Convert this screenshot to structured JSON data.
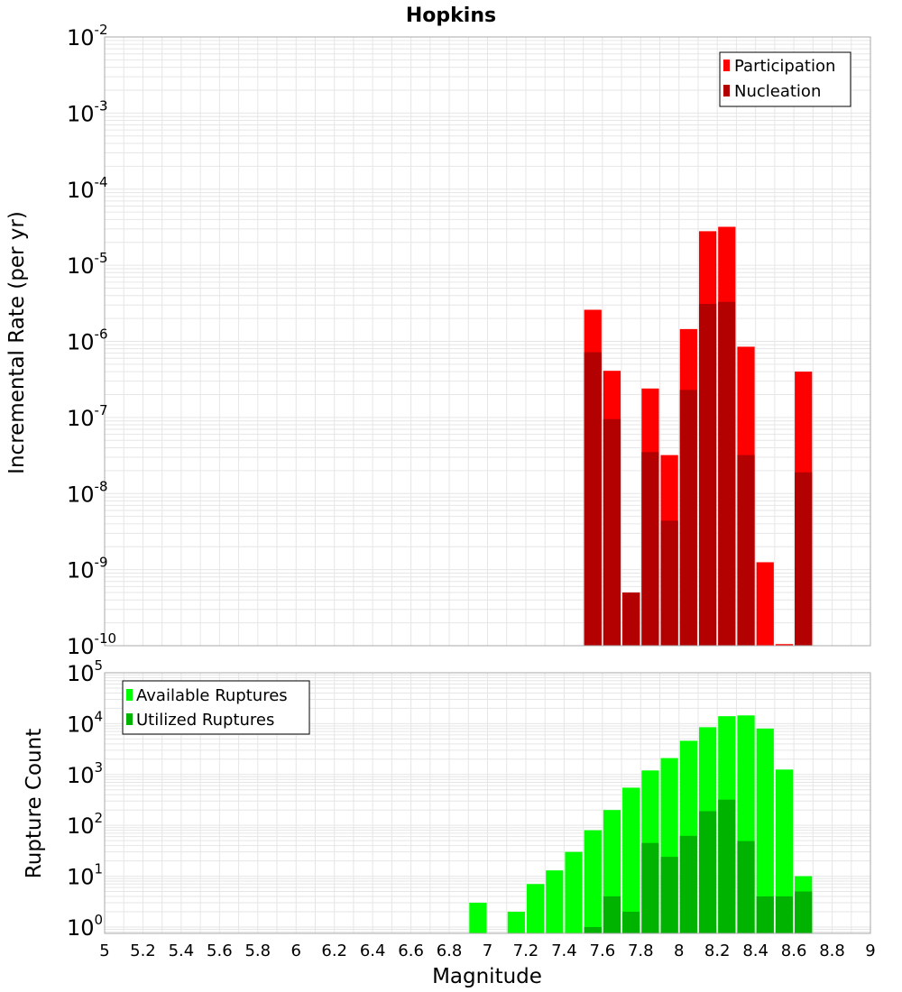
{
  "title": "Hopkins",
  "xlabel": "Magnitude",
  "x_ticks": [
    "5",
    "5.2",
    "5.4",
    "5.6",
    "5.8",
    "6",
    "6.2",
    "6.4",
    "6.6",
    "6.8",
    "7",
    "7.2",
    "7.4",
    "7.6",
    "7.8",
    "8",
    "8.2",
    "8.4",
    "8.6",
    "8.8",
    "9"
  ],
  "colors": {
    "participation": "#ff0000",
    "nucleation": "#b30000",
    "available": "#00ff00",
    "utilized": "#00b300",
    "grid": "#e6e6e6",
    "frame": "#aaaaaa"
  },
  "chart_data": [
    {
      "type": "bar",
      "title": "Hopkins",
      "xlabel": "",
      "ylabel": "Incremental Rate (per yr)",
      "yscale": "log",
      "xlim": [
        5,
        9
      ],
      "ylim_exp": [
        -10,
        -2
      ],
      "y_ticks": [
        {
          "base": "10",
          "exp": "-2"
        },
        {
          "base": "10",
          "exp": "-3"
        },
        {
          "base": "10",
          "exp": "-4"
        },
        {
          "base": "10",
          "exp": "-5"
        },
        {
          "base": "10",
          "exp": "-6"
        },
        {
          "base": "10",
          "exp": "-7"
        },
        {
          "base": "10",
          "exp": "-8"
        },
        {
          "base": "10",
          "exp": "-9"
        },
        {
          "base": "10",
          "exp": "-10"
        }
      ],
      "legend": [
        "Participation",
        "Nucleation"
      ],
      "legend_position": "top-right",
      "bar_width": 0.1,
      "series": [
        {
          "name": "Participation",
          "x": [
            7.55,
            7.65,
            7.75,
            7.85,
            7.95,
            8.05,
            8.15,
            8.25,
            8.35,
            8.45,
            8.55,
            8.65
          ],
          "values": [
            2.6e-06,
            4.1e-07,
            5e-10,
            2.4e-07,
            3.2e-08,
            1.45e-06,
            2.8e-05,
            3.2e-05,
            8.5e-07,
            1.25e-09,
            1.05e-10,
            4e-07
          ]
        },
        {
          "name": "Nucleation",
          "x": [
            7.55,
            7.65,
            7.75,
            7.85,
            7.95,
            8.05,
            8.15,
            8.25,
            8.35,
            8.65
          ],
          "values": [
            7.2e-07,
            9.5e-08,
            5e-10,
            3.5e-08,
            4.4e-09,
            2.3e-07,
            3.1e-06,
            3.3e-06,
            3.2e-08,
            1.9e-08
          ]
        }
      ]
    },
    {
      "type": "bar",
      "xlabel": "Magnitude",
      "ylabel": "Rupture Count",
      "yscale": "log",
      "xlim": [
        5,
        9
      ],
      "ylim": [
        0.75,
        100000
      ],
      "y_ticks": [
        {
          "base": "10",
          "exp": "5"
        },
        {
          "base": "10",
          "exp": "4"
        },
        {
          "base": "10",
          "exp": "3"
        },
        {
          "base": "10",
          "exp": "2"
        },
        {
          "base": "10",
          "exp": "1"
        },
        {
          "base": "10",
          "exp": "0"
        }
      ],
      "legend": [
        "Available Ruptures",
        "Utilized Ruptures"
      ],
      "legend_position": "top-left",
      "bar_width": 0.1,
      "series": [
        {
          "name": "Available Ruptures",
          "x": [
            6.95,
            7.15,
            7.25,
            7.35,
            7.45,
            7.55,
            7.65,
            7.75,
            7.85,
            7.95,
            8.05,
            8.15,
            8.25,
            8.35,
            8.45,
            8.55,
            8.65
          ],
          "values": [
            3,
            2,
            7,
            13,
            30,
            80,
            200,
            550,
            1200,
            2100,
            4600,
            8500,
            14000,
            14500,
            8000,
            1250,
            10
          ]
        },
        {
          "name": "Utilized Ruptures",
          "x": [
            7.55,
            7.65,
            7.75,
            7.85,
            7.95,
            8.05,
            8.15,
            8.25,
            8.35,
            8.45,
            8.55,
            8.65
          ],
          "values": [
            1,
            4,
            2,
            45,
            24,
            62,
            190,
            320,
            49,
            4,
            4,
            5
          ]
        }
      ]
    }
  ]
}
